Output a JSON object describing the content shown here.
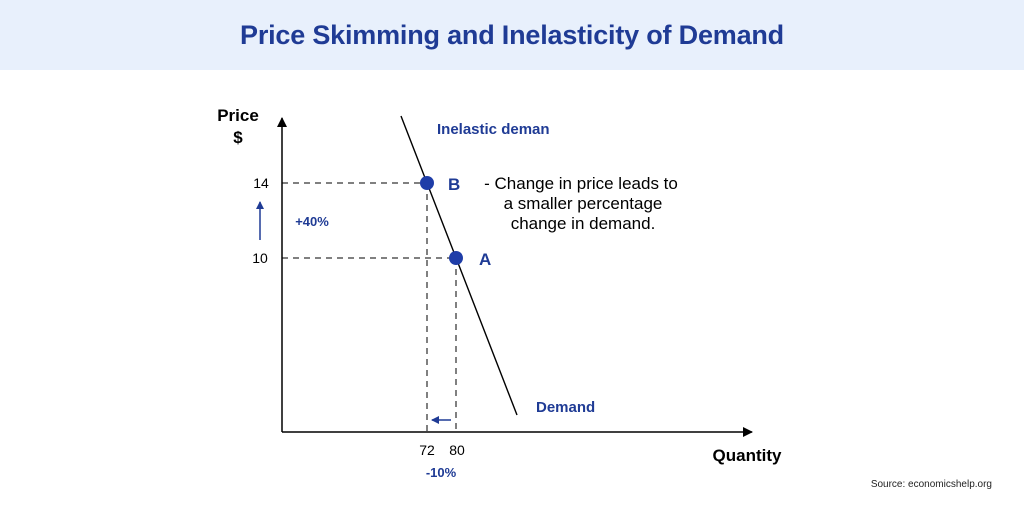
{
  "header": {
    "title": "Price Skimming and Inelasticity of Demand"
  },
  "diagram": {
    "y_axis_label_line1": "Price",
    "y_axis_label_line2": "$",
    "x_axis_label": "Quantity",
    "price_high": "14",
    "price_low": "10",
    "quantity_low": "72",
    "quantity_high": "80",
    "price_change": "+40%",
    "quantity_change": "-10%",
    "point_b_label": "B",
    "point_a_label": "A",
    "curve_top_label": "Inelastic deman",
    "curve_bottom_label": "Demand",
    "explanation_line1": "- Change in price leads to",
    "explanation_line2": "a smaller percentage",
    "explanation_line3": "change in demand.",
    "colors": {
      "accent": "#1f3b95",
      "point": "#1f3da8",
      "axis": "#000000"
    }
  },
  "footer": {
    "source": "Source: economicshelp.org"
  }
}
